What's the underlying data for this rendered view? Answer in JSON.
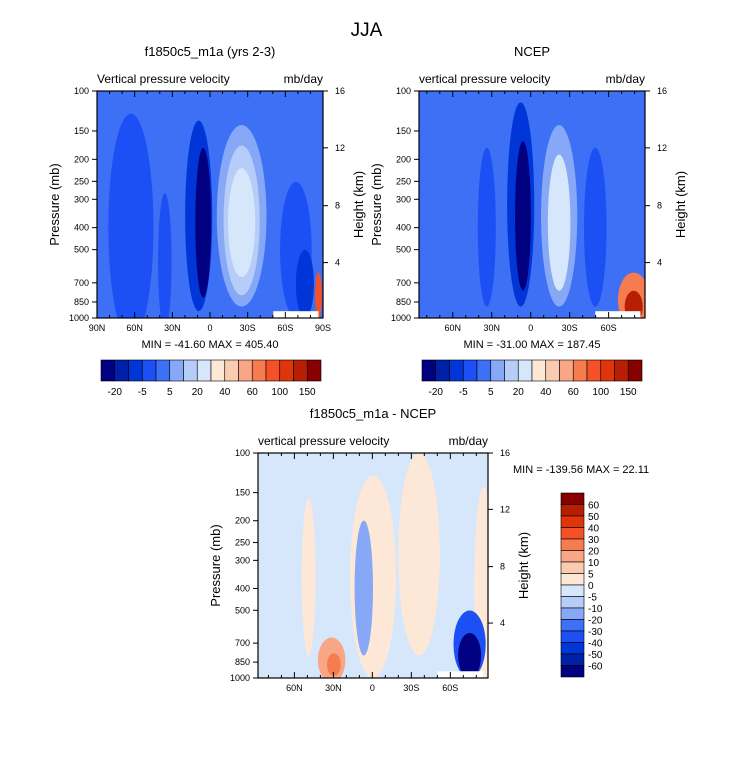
{
  "main_title": "JJA",
  "chart_data": [
    {
      "type": "heatmap",
      "title": "f1850c5_m1a (yrs 2-3)",
      "left_subtitle": "Vertical pressure velocity",
      "right_subtitle": "mb/day",
      "ylabel": "Pressure (mb)",
      "ylabel_right": "Height (km)",
      "x_ticks": [
        "90N",
        "60N",
        "30N",
        "0",
        "30S",
        "60S",
        "90S"
      ],
      "y_ticks": [
        "100",
        "150",
        "200",
        "250",
        "300",
        "400",
        "500",
        "700",
        "850",
        "1000"
      ],
      "y_right_ticks": [
        "16",
        "12",
        "8",
        "4"
      ],
      "stats": "MIN = -41.60  MAX = 405.40",
      "colorbar_labels": [
        "-20",
        "-5",
        "5",
        "20",
        "40",
        "60",
        "100",
        "150"
      ],
      "colors": [
        "#000080",
        "#0020a8",
        "#0035d8",
        "#1c50f5",
        "#3d70f5",
        "#86a8f6",
        "#b5cdf8",
        "#d7e7fb",
        "#fde8d8",
        "#fbcbb1",
        "#f8a686",
        "#f67b4f",
        "#f55126",
        "#e03509",
        "#b81e04",
        "#880000"
      ]
    },
    {
      "type": "heatmap",
      "title": "NCEP",
      "left_subtitle": "vertical pressure velocity",
      "right_subtitle": "mb/day",
      "ylabel": "Pressure (mb)",
      "ylabel_right": "Height (km)",
      "x_ticks": [
        "60N",
        "30N",
        "0",
        "30S",
        "60S"
      ],
      "y_ticks": [
        "100",
        "150",
        "200",
        "250",
        "300",
        "400",
        "500",
        "700",
        "850",
        "1000"
      ],
      "y_right_ticks": [
        "16",
        "12",
        "8",
        "4"
      ],
      "stats": "MIN = -31.00  MAX = 187.45",
      "colorbar_labels": [
        "-20",
        "-5",
        "5",
        "20",
        "40",
        "60",
        "100",
        "150"
      ]
    },
    {
      "type": "heatmap",
      "title": "f1850c5_m1a - NCEP",
      "left_subtitle": "vertical pressure velocity",
      "right_subtitle": "mb/day",
      "ylabel": "Pressure (mb)",
      "ylabel_right": "Height (km)",
      "x_ticks": [
        "60N",
        "30N",
        "0",
        "30S",
        "60S"
      ],
      "y_ticks": [
        "100",
        "150",
        "200",
        "250",
        "300",
        "400",
        "500",
        "700",
        "850",
        "1000"
      ],
      "y_right_ticks": [
        "16",
        "12",
        "8",
        "4"
      ],
      "stats": "MIN = -139.56  MAX =  22.11",
      "colorbar_labels": [
        "60",
        "50",
        "40",
        "30",
        "20",
        "10",
        "5",
        "0",
        "-5",
        "-10",
        "-20",
        "-30",
        "-40",
        "-50",
        "-60"
      ]
    }
  ]
}
